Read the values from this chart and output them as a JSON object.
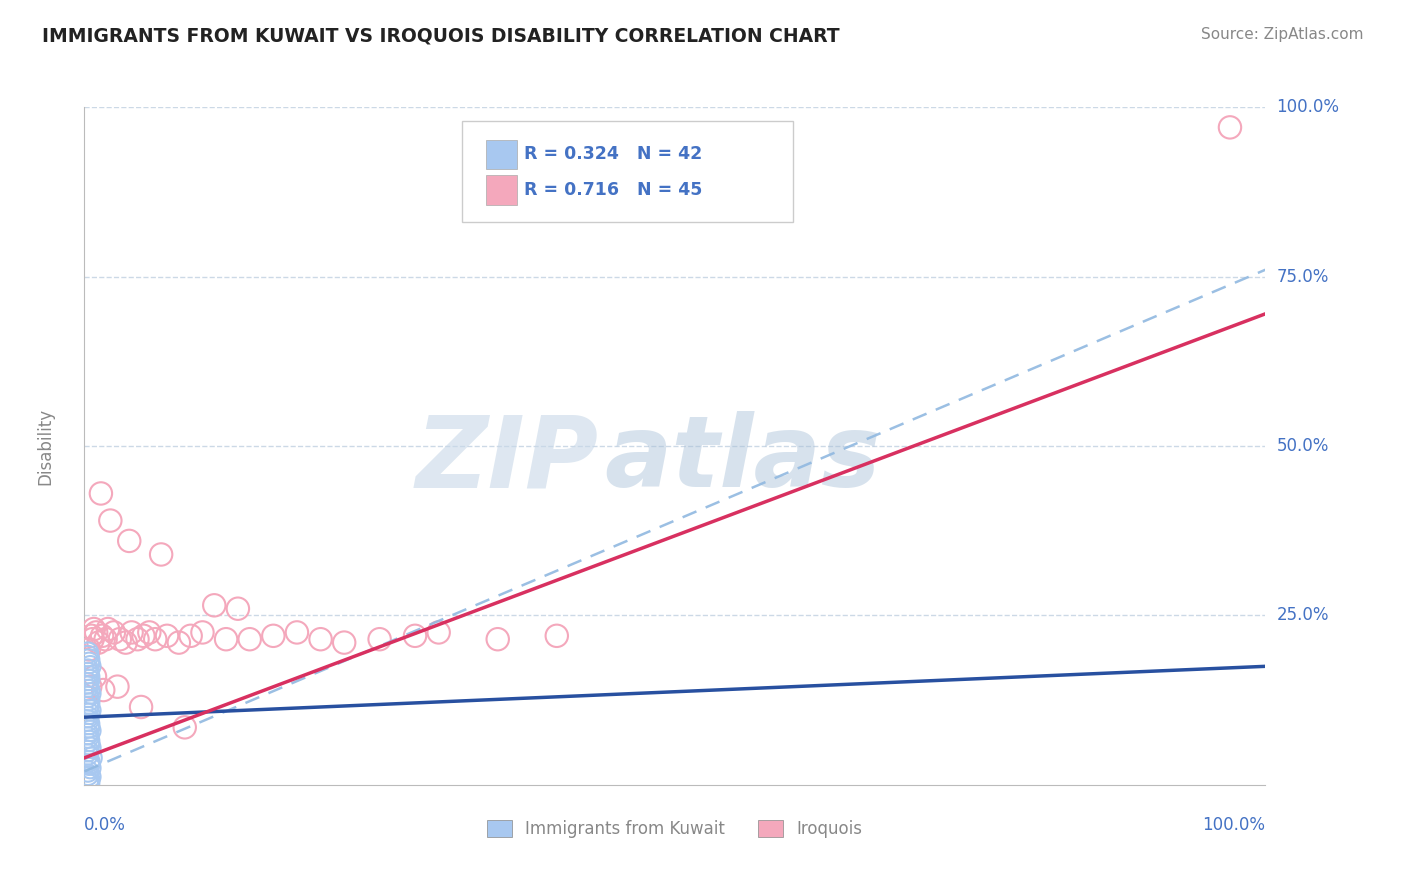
{
  "title": "IMMIGRANTS FROM KUWAIT VS IROQUOIS DISABILITY CORRELATION CHART",
  "source": "Source: ZipAtlas.com",
  "ylabel": "Disability",
  "xlim": [
    0,
    1
  ],
  "ylim": [
    0,
    1
  ],
  "blue_R": 0.324,
  "blue_N": 42,
  "pink_R": 0.716,
  "pink_N": 45,
  "blue_color": "#a8c8f0",
  "pink_color": "#f4a8bc",
  "blue_line_color": "#2850a0",
  "pink_line_color": "#d83060",
  "dash_line_color": "#90b8e0",
  "grid_color": "#c0d0e0",
  "background": "#ffffff",
  "blue_line_y0": 0.1,
  "blue_line_y1": 0.175,
  "pink_line_y0": 0.04,
  "pink_line_y1": 0.695,
  "dash_line_y0": 0.02,
  "dash_line_y1": 0.76,
  "blue_points_x": [
    0.003,
    0.004,
    0.005,
    0.003,
    0.004,
    0.003,
    0.005,
    0.004,
    0.003,
    0.004,
    0.003,
    0.004,
    0.003,
    0.004,
    0.005,
    0.003,
    0.004,
    0.005,
    0.003,
    0.004,
    0.003,
    0.004,
    0.003,
    0.004,
    0.003,
    0.004,
    0.003,
    0.004,
    0.005,
    0.003,
    0.004,
    0.005,
    0.003,
    0.004,
    0.003,
    0.006,
    0.004,
    0.003,
    0.005,
    0.003,
    0.004,
    0.003
  ],
  "blue_points_y": [
    0.195,
    0.185,
    0.175,
    0.165,
    0.155,
    0.145,
    0.135,
    0.125,
    0.115,
    0.105,
    0.095,
    0.085,
    0.075,
    0.065,
    0.055,
    0.045,
    0.035,
    0.025,
    0.015,
    0.008,
    0.19,
    0.18,
    0.17,
    0.16,
    0.15,
    0.14,
    0.13,
    0.12,
    0.11,
    0.1,
    0.09,
    0.08,
    0.07,
    0.06,
    0.05,
    0.04,
    0.03,
    0.02,
    0.012,
    0.005,
    0.003,
    0.001
  ],
  "pink_points_x": [
    0.004,
    0.006,
    0.007,
    0.008,
    0.01,
    0.012,
    0.015,
    0.018,
    0.02,
    0.025,
    0.03,
    0.035,
    0.04,
    0.045,
    0.05,
    0.055,
    0.06,
    0.07,
    0.08,
    0.09,
    0.1,
    0.12,
    0.14,
    0.16,
    0.18,
    0.2,
    0.22,
    0.25,
    0.28,
    0.3,
    0.35,
    0.4,
    0.014,
    0.022,
    0.038,
    0.065,
    0.11,
    0.005,
    0.009,
    0.016,
    0.028,
    0.048,
    0.085,
    0.13,
    0.97
  ],
  "pink_points_y": [
    0.2,
    0.22,
    0.215,
    0.23,
    0.225,
    0.21,
    0.22,
    0.215,
    0.23,
    0.225,
    0.215,
    0.21,
    0.225,
    0.215,
    0.22,
    0.225,
    0.215,
    0.22,
    0.21,
    0.22,
    0.225,
    0.215,
    0.215,
    0.22,
    0.225,
    0.215,
    0.21,
    0.215,
    0.22,
    0.225,
    0.215,
    0.22,
    0.43,
    0.39,
    0.36,
    0.34,
    0.265,
    0.145,
    0.16,
    0.14,
    0.145,
    0.115,
    0.085,
    0.26,
    0.97
  ],
  "title_color": "#222222",
  "tick_color": "#4472c4",
  "axis_label_color": "#888888",
  "watermark_zip_color": "#c0cfe0",
  "watermark_atlas_color": "#a8c0d8",
  "legend_labels": [
    "Immigrants from Kuwait",
    "Iroquois"
  ]
}
